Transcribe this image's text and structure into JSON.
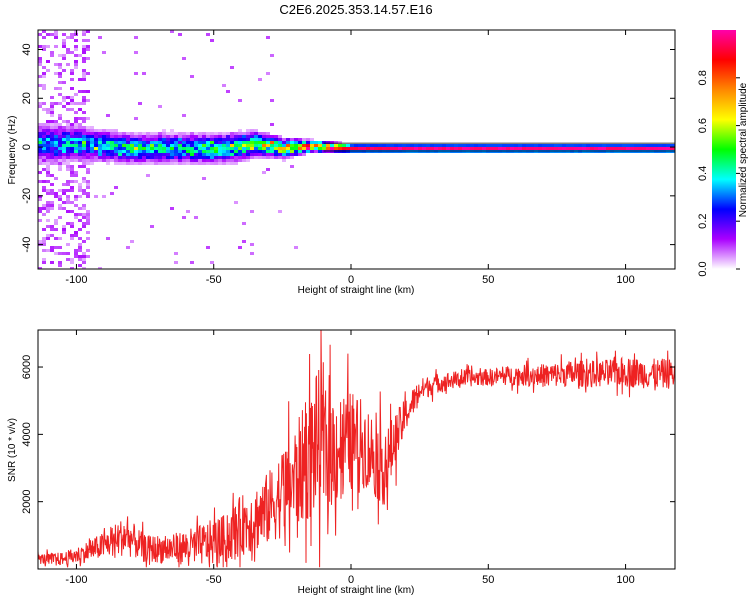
{
  "title": "C2E6.2025.353.14.57.E16",
  "colors": {
    "snr_line": "#ee2222",
    "axis": "#000000",
    "background": "#ffffff"
  },
  "chart_data": [
    {
      "type": "heatmap",
      "name": "spectrogram",
      "xlabel": "Height of straight line (km)",
      "ylabel": "Frequency (Hz)",
      "xlim": [
        -114,
        118
      ],
      "ylim": [
        -50,
        48
      ],
      "xticks": [
        -100,
        -50,
        0,
        50,
        100
      ],
      "yticks": [
        -40,
        -20,
        0,
        20,
        40
      ],
      "colorbar": {
        "label": "Normalized spectral amplitude",
        "range": [
          0.0,
          1.0
        ],
        "ticks": [
          "0.0",
          "0.2",
          "0.4",
          "0.6",
          "0.8"
        ],
        "stops": [
          "#ffffff",
          "#aa00ff",
          "#0000ff",
          "#00ffff",
          "#00ff00",
          "#ffff00",
          "#ff8800",
          "#ff0000",
          "#ff00aa"
        ]
      },
      "ridge": {
        "description": "dominant tone near 0 Hz",
        "x": [
          -114,
          -100,
          -80,
          -60,
          -45,
          -35,
          -25,
          -15,
          0,
          20,
          60,
          100,
          118
        ],
        "freq_hz": [
          2,
          2,
          0,
          0,
          0,
          2,
          0,
          1,
          0,
          0,
          0,
          0,
          0
        ],
        "half_width_hz": [
          4,
          3.5,
          3,
          3,
          3,
          2.5,
          2,
          1.2,
          0.8,
          0.8,
          0.8,
          0.8,
          0.8
        ],
        "amplitude": [
          0.35,
          0.4,
          0.45,
          0.45,
          0.5,
          0.6,
          0.7,
          0.85,
          0.95,
          1.0,
          1.0,
          1.0,
          1.0
        ]
      },
      "noise_band": {
        "x_range": [
          -114,
          -96
        ],
        "amplitude": 0.08
      }
    },
    {
      "type": "line",
      "name": "snr",
      "xlabel": "Height of straight line (km)",
      "ylabel": "SNR (10 * v/v)",
      "xlim": [
        -114,
        118
      ],
      "ylim": [
        0,
        7100
      ],
      "xticks": [
        -100,
        -50,
        0,
        50,
        100
      ],
      "yticks": [
        2000,
        4000,
        6000
      ],
      "series": [
        {
          "name": "SNR",
          "x": [
            -114,
            -105,
            -100,
            -90,
            -82,
            -75,
            -65,
            -55,
            -50,
            -45,
            -40,
            -35,
            -30,
            -26,
            -22,
            -18,
            -14,
            -12,
            -10,
            -5,
            0,
            5,
            10,
            13,
            15,
            20,
            25,
            30,
            40,
            50,
            60,
            70,
            80,
            90,
            100,
            110,
            118
          ],
          "y": [
            300,
            300,
            400,
            700,
            1000,
            600,
            600,
            700,
            800,
            900,
            1300,
            1500,
            1800,
            2200,
            2500,
            3000,
            3500,
            3800,
            3500,
            3600,
            3800,
            3700,
            3200,
            3000,
            3600,
            4600,
            5300,
            5500,
            5650,
            5700,
            5750,
            5750,
            5800,
            5800,
            5850,
            5800,
            5800
          ],
          "spread": [
            150,
            200,
            250,
            400,
            600,
            400,
            450,
            600,
            700,
            750,
            900,
            1000,
            1100,
            1300,
            1500,
            1700,
            2000,
            2200,
            1900,
            1700,
            1500,
            1300,
            1200,
            1200,
            900,
            500,
            350,
            300,
            250,
            250,
            300,
            350,
            400,
            400,
            450,
            450,
            450
          ]
        }
      ]
    }
  ]
}
